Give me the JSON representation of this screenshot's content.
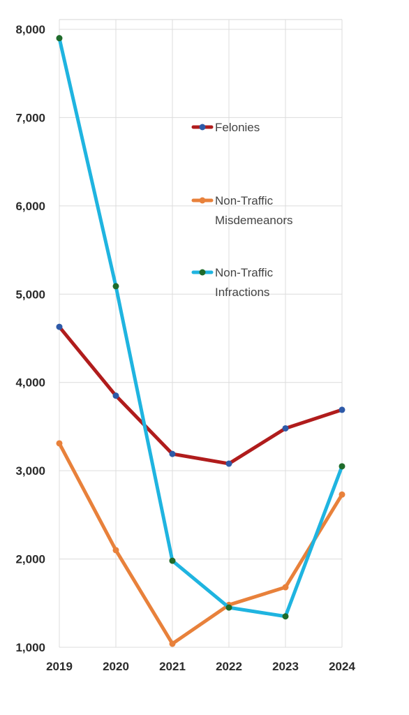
{
  "chart_data": {
    "type": "line",
    "x": [
      "2019",
      "2020",
      "2021",
      "2022",
      "2023",
      "2024"
    ],
    "ylim": [
      1000,
      8000
    ],
    "yticks": [
      "1,000",
      "2,000",
      "3,000",
      "4,000",
      "5,000",
      "6,000",
      "7,000",
      "8,000"
    ],
    "ytick_values": [
      1000,
      2000,
      3000,
      4000,
      5000,
      6000,
      7000,
      8000
    ],
    "grid": true,
    "legend_position": "center-right",
    "series": [
      {
        "name": "Felonies",
        "label_lines": [
          "Felonies"
        ],
        "values": [
          4630,
          3850,
          3190,
          3080,
          3480,
          3690
        ],
        "line_color": "#b01c1c",
        "marker_color": "#2e5aa8"
      },
      {
        "name": "Non-Traffic Misdemeanors",
        "label_lines": [
          "Non-Traffic",
          "Misdemeanors"
        ],
        "values": [
          3310,
          2100,
          1040,
          1480,
          1680,
          2730
        ],
        "line_color": "#e8813b",
        "marker_color": "#e8813b"
      },
      {
        "name": "Non-Traffic Infractions",
        "label_lines": [
          "Non-Traffic",
          "Infractions"
        ],
        "values": [
          7900,
          5090,
          1980,
          1450,
          1350,
          3050
        ],
        "line_color": "#1fb4e0",
        "marker_color": "#1f6b2b"
      }
    ]
  }
}
